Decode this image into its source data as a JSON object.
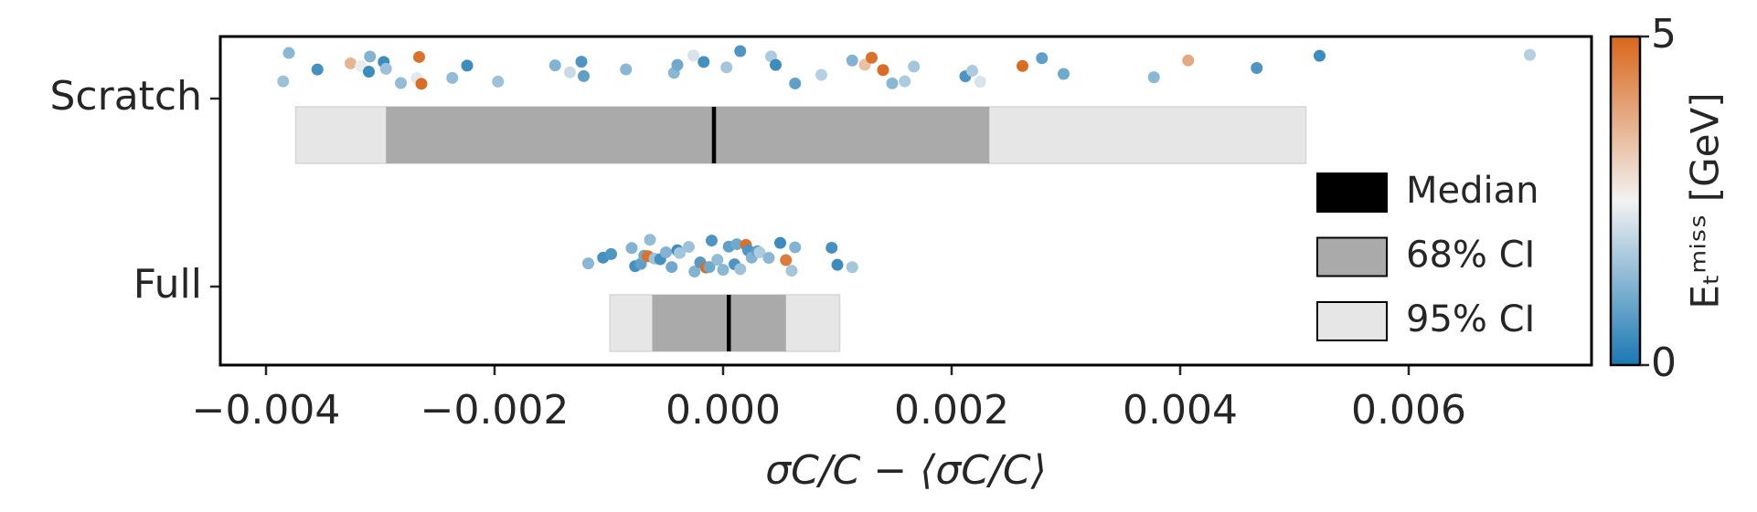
{
  "chart_data": {
    "type": "strip",
    "categories": [
      "Scratch",
      "Full"
    ],
    "xlabel": "σC/C − ⟨σC/C⟩",
    "xlim": [
      -0.0044,
      0.0076
    ],
    "xticks": [
      {
        "value": -0.004,
        "label": "−0.004"
      },
      {
        "value": -0.002,
        "label": "−0.002"
      },
      {
        "value": 0,
        "label": "0.000"
      },
      {
        "value": 0.002,
        "label": "0.002"
      },
      {
        "value": 0.004,
        "label": "0.004"
      },
      {
        "value": 0.006,
        "label": "0.006"
      }
    ],
    "groups": [
      {
        "x": [
          -0.00385,
          -0.0038,
          -0.00355,
          -0.00326,
          -0.00317,
          -0.0031,
          -0.00309,
          -0.00297,
          -0.00295,
          -0.00282,
          -0.00268,
          -0.00266,
          -0.00264,
          -0.00237,
          -0.00224,
          -0.00197,
          -0.00147,
          -0.00134,
          -0.00124,
          -0.00122,
          -0.00085,
          -0.00043,
          -0.0004,
          -0.00026,
          -0.00017,
          3e-05,
          0.00015,
          0.00042,
          0.00046,
          0.00063,
          0.00086,
          0.00113,
          0.00124,
          0.0013,
          0.0014,
          0.00148,
          0.00159,
          0.00167,
          0.00212,
          0.00218,
          0.00225,
          0.00262,
          0.00279,
          0.00298,
          0.00377,
          0.00407,
          0.00467,
          0.00522,
          0.00706
        ],
        "c": [
          1.5,
          1.3,
          0.5,
          3.6,
          2.4,
          0.4,
          1.2,
          0.4,
          1.5,
          1.4,
          2.3,
          4.8,
          4.9,
          1.4,
          0.4,
          1.5,
          1.2,
          2.0,
          0.6,
          0.8,
          1.3,
          1.3,
          1.0,
          2.2,
          0.5,
          1.6,
          0.6,
          1.7,
          0.4,
          0.8,
          1.8,
          1.2,
          3.4,
          4.8,
          4.9,
          1.3,
          1.7,
          1.6,
          0.6,
          1.7,
          2.2,
          4.9,
          0.8,
          1.0,
          1.3,
          3.8,
          0.6,
          0.4,
          1.8
        ],
        "median": -8e-05,
        "ci68": [
          -0.00295,
          0.00233
        ],
        "ci95": [
          -0.00374,
          0.0051
        ]
      },
      {
        "x": [
          -0.00118,
          -0.00105,
          -0.00098,
          -0.0008,
          -0.00077,
          -0.00072,
          -0.00069,
          -0.00065,
          -0.00066,
          -0.00064,
          -0.0006,
          -0.00055,
          -0.0005,
          -0.00045,
          -0.0004,
          -0.00038,
          -0.0003,
          -0.00025,
          -0.0002,
          -0.00015,
          -0.00012,
          -0.0001,
          -5e-05,
          0,
          5e-05,
          0.0001,
          0.00012,
          0.00015,
          0.0002,
          0.00022,
          0.00025,
          0.0003,
          0.00032,
          0.0004,
          0.0005,
          0.00055,
          0.0006,
          0.00063,
          0.00095,
          0.001,
          0.00113
        ],
        "c": [
          1.3,
          0.5,
          0.6,
          1.2,
          0.5,
          0.8,
          1.0,
          3.5,
          4.8,
          1.4,
          1.5,
          0.5,
          1.2,
          1.0,
          0.4,
          1.6,
          1.5,
          1.2,
          0.7,
          4.9,
          1.0,
          0.6,
          1.4,
          1.3,
          0.8,
          0.6,
          1.0,
          1.5,
          4.8,
          0.6,
          1.2,
          0.8,
          1.7,
          1.3,
          0.4,
          4.6,
          1.6,
          1.2,
          0.5,
          0.4,
          1.6
        ],
        "median": 5e-05,
        "ci68": [
          -0.00062,
          0.00055
        ],
        "ci95": [
          -0.00099,
          0.00102
        ]
      }
    ],
    "legend": [
      {
        "name": "Median",
        "color": "#000000"
      },
      {
        "name": "68% CI",
        "color": "#aaaaaa"
      },
      {
        "name": "95% CI",
        "color": "#e6e6e6"
      }
    ],
    "colorbar_label": "Eₜᵐⁱˢˢ [GeV]",
    "clim": [
      0,
      5
    ],
    "cticks": [
      0,
      5
    ],
    "cmap": [
      "#1a78b4",
      "#f2f2f2",
      "#d9661a"
    ]
  }
}
